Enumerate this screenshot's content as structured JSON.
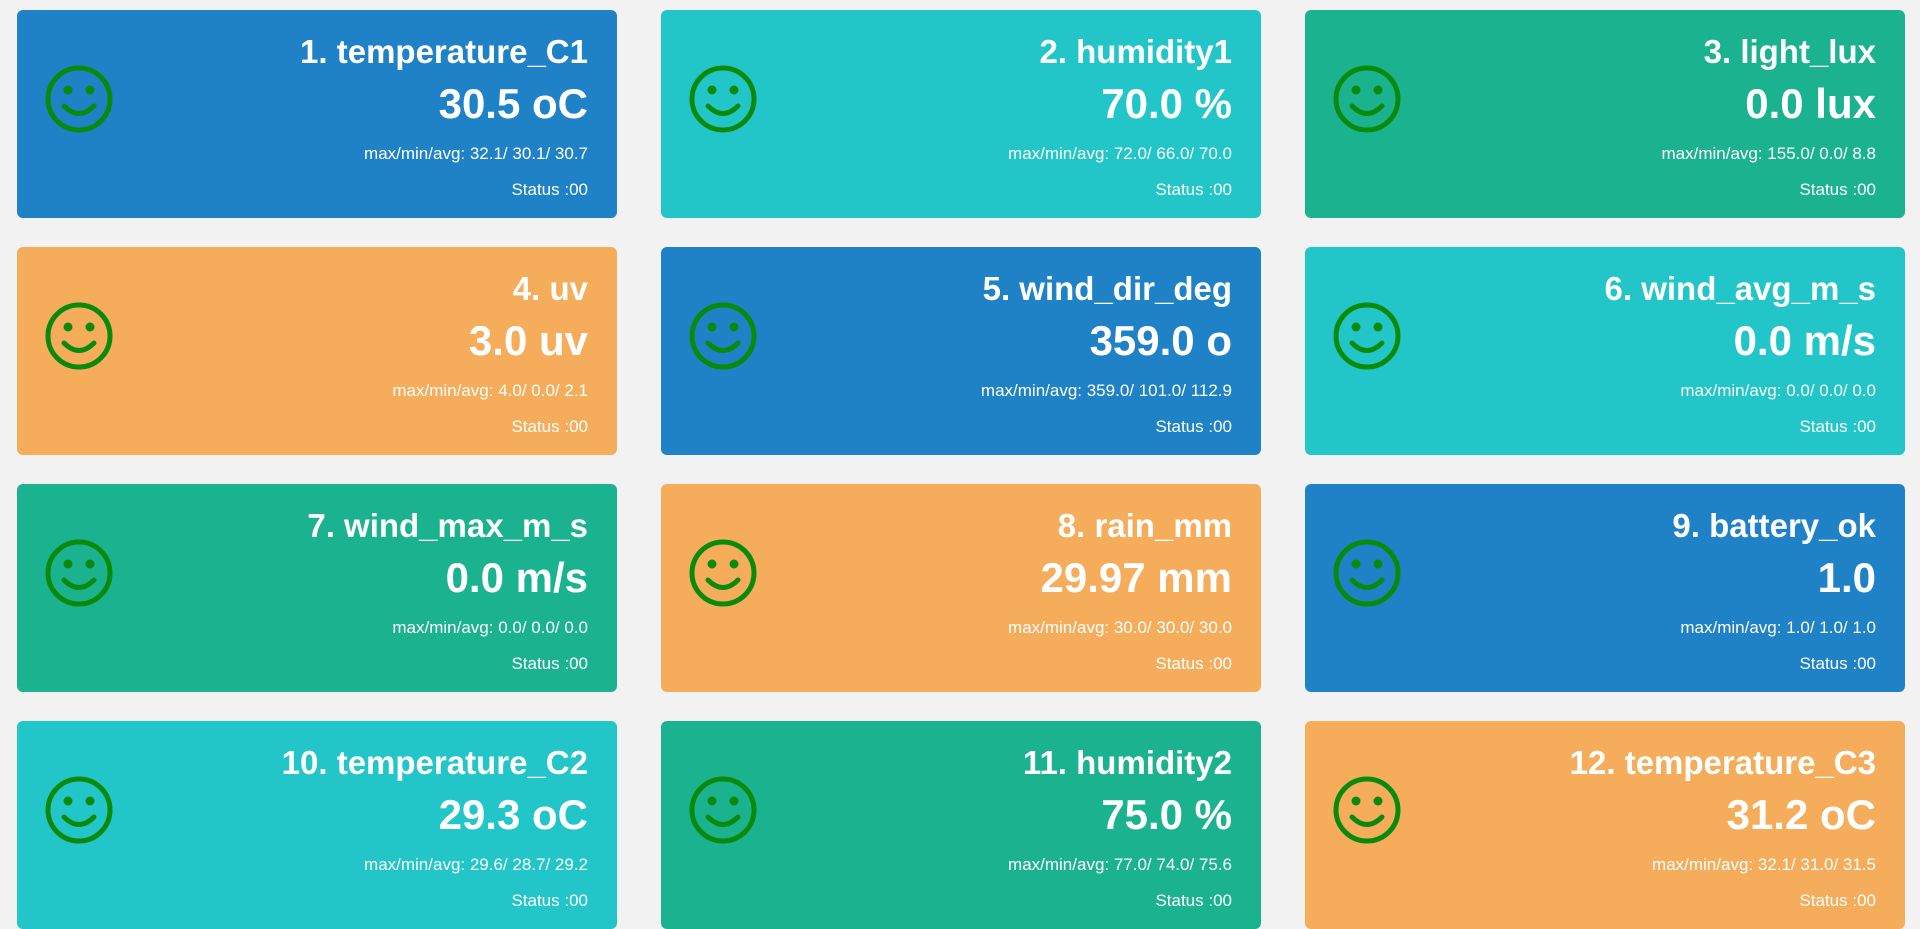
{
  "colors": {
    "blue": "#1f82c7",
    "cyan": "#22c6c9",
    "green": "#1bb290",
    "orange": "#f6ad5b",
    "smiley": "#0a8a0a",
    "background": "#f2f2f3"
  },
  "icon": "smiley-face-icon",
  "cards": [
    {
      "name": "1. temperature_C1",
      "value": "30.5 oC",
      "stats": "max/min/avg: 32.1/ 30.1/ 30.7",
      "status": "Status :00",
      "color": "#1f82c7"
    },
    {
      "name": "2. humidity1",
      "value": "70.0 %",
      "stats": "max/min/avg: 72.0/ 66.0/ 70.0",
      "status": "Status :00",
      "color": "#22c6c9"
    },
    {
      "name": "3. light_lux",
      "value": "0.0 lux",
      "stats": "max/min/avg: 155.0/ 0.0/ 8.8",
      "status": "Status :00",
      "color": "#1bb290"
    },
    {
      "name": "4. uv",
      "value": "3.0 uv",
      "stats": "max/min/avg: 4.0/ 0.0/ 2.1",
      "status": "Status :00",
      "color": "#f6ad5b"
    },
    {
      "name": "5. wind_dir_deg",
      "value": "359.0 o",
      "stats": "max/min/avg: 359.0/ 101.0/ 112.9",
      "status": "Status :00",
      "color": "#1f82c7"
    },
    {
      "name": "6. wind_avg_m_s",
      "value": "0.0 m/s",
      "stats": "max/min/avg: 0.0/ 0.0/ 0.0",
      "status": "Status :00",
      "color": "#22c6c9"
    },
    {
      "name": "7. wind_max_m_s",
      "value": "0.0 m/s",
      "stats": "max/min/avg: 0.0/ 0.0/ 0.0",
      "status": "Status :00",
      "color": "#1bb290"
    },
    {
      "name": "8. rain_mm",
      "value": "29.97 mm",
      "stats": "max/min/avg: 30.0/ 30.0/ 30.0",
      "status": "Status :00",
      "color": "#f6ad5b"
    },
    {
      "name": "9. battery_ok",
      "value": "1.0",
      "stats": "max/min/avg: 1.0/ 1.0/ 1.0",
      "status": "Status :00",
      "color": "#1f82c7"
    },
    {
      "name": "10. temperature_C2",
      "value": "29.3 oC",
      "stats": "max/min/avg: 29.6/ 28.7/ 29.2",
      "status": "Status :00",
      "color": "#22c6c9"
    },
    {
      "name": "11. humidity2",
      "value": "75.0 %",
      "stats": "max/min/avg: 77.0/ 74.0/ 75.6",
      "status": "Status :00",
      "color": "#1bb290"
    },
    {
      "name": "12. temperature_C3",
      "value": "31.2 oC",
      "stats": "max/min/avg: 32.1/ 31.0/ 31.5",
      "status": "Status :00",
      "color": "#f6ad5b"
    }
  ]
}
